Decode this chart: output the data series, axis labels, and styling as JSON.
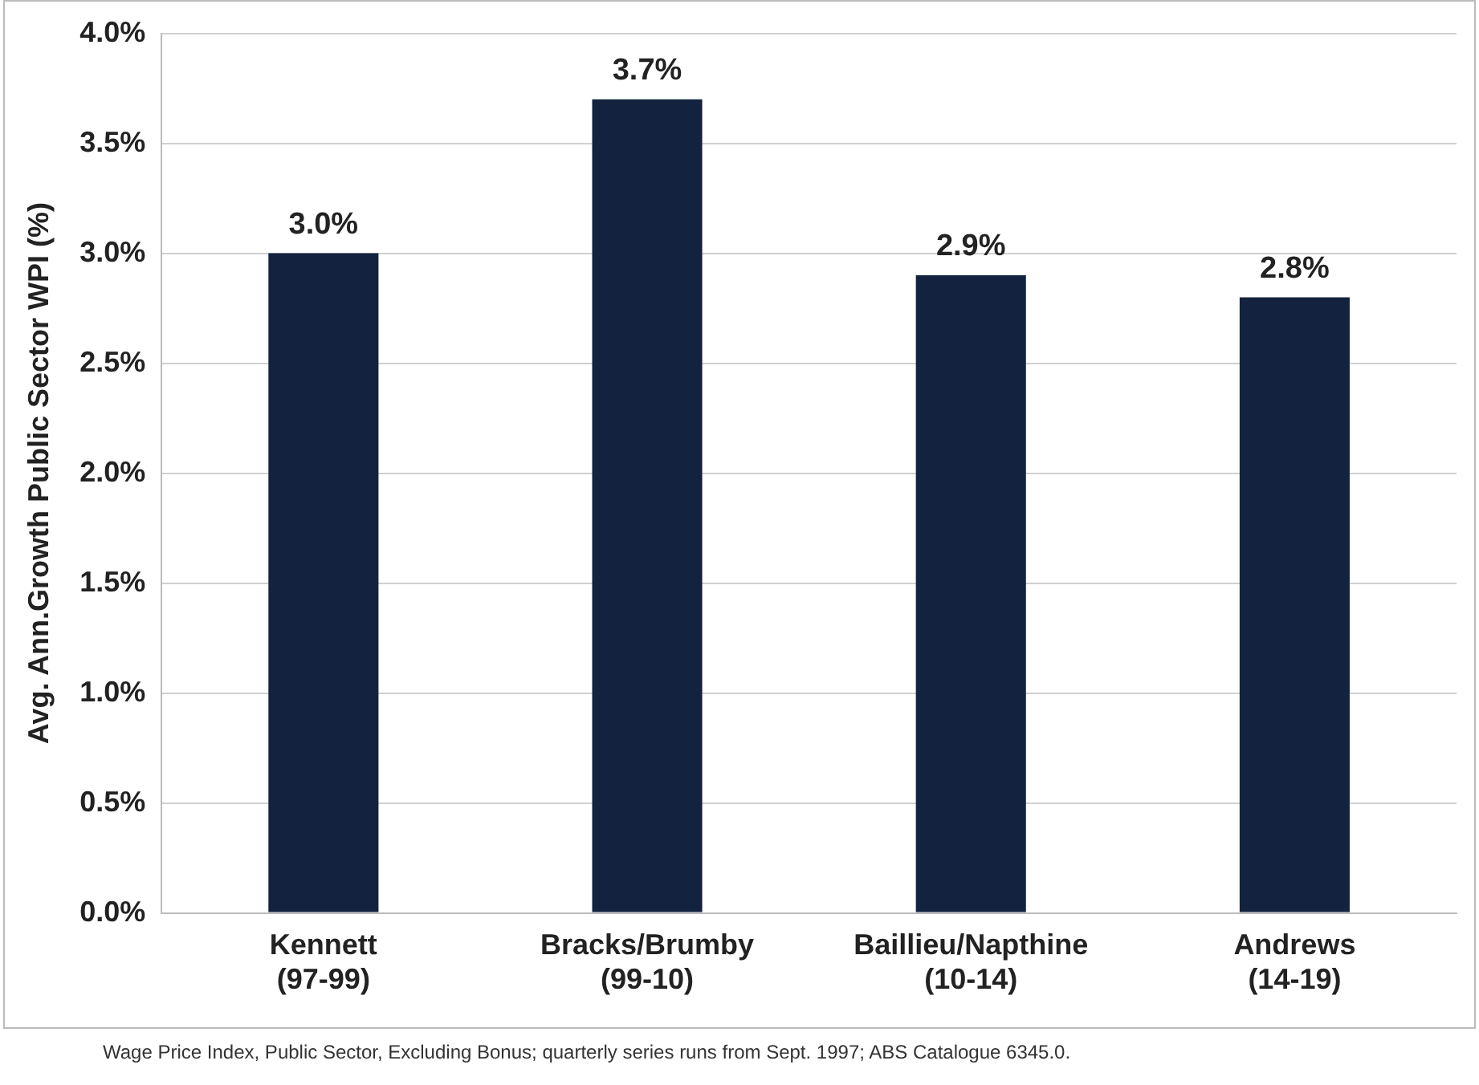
{
  "chart_data": {
    "type": "bar",
    "ylabel": "Avg. Ann.Growth Public Sector WPI (%)",
    "categories": [
      "Kennett\n(97-99)",
      "Bracks/Brumby\n(99-10)",
      "Baillieu/Napthine\n(10-14)",
      "Andrews\n(14-19)"
    ],
    "values": [
      3.0,
      3.7,
      2.9,
      2.8
    ],
    "value_labels": [
      "3.0%",
      "3.7%",
      "2.9%",
      "2.8%"
    ],
    "color": "#13223f",
    "ylim": [
      0,
      4
    ],
    "yticks": [
      {
        "value": 0,
        "label": "0.0%"
      },
      {
        "value": 0.5,
        "label": "0.5%"
      },
      {
        "value": 1,
        "label": "1.0%"
      },
      {
        "value": 1.5,
        "label": "1.5%"
      },
      {
        "value": 2,
        "label": "2.0%"
      },
      {
        "value": 2.5,
        "label": "2.5%"
      },
      {
        "value": 3,
        "label": "3.0%"
      },
      {
        "value": 3.5,
        "label": "3.5%"
      },
      {
        "value": 4,
        "label": "4.0%"
      }
    ],
    "grid": "y",
    "legend": false,
    "annotations": [
      "Wage Price Index, Public Sector, Excluding Bonus; quarterly series runs from Sept. 1997; ABS Catalogue 6345.0."
    ]
  }
}
